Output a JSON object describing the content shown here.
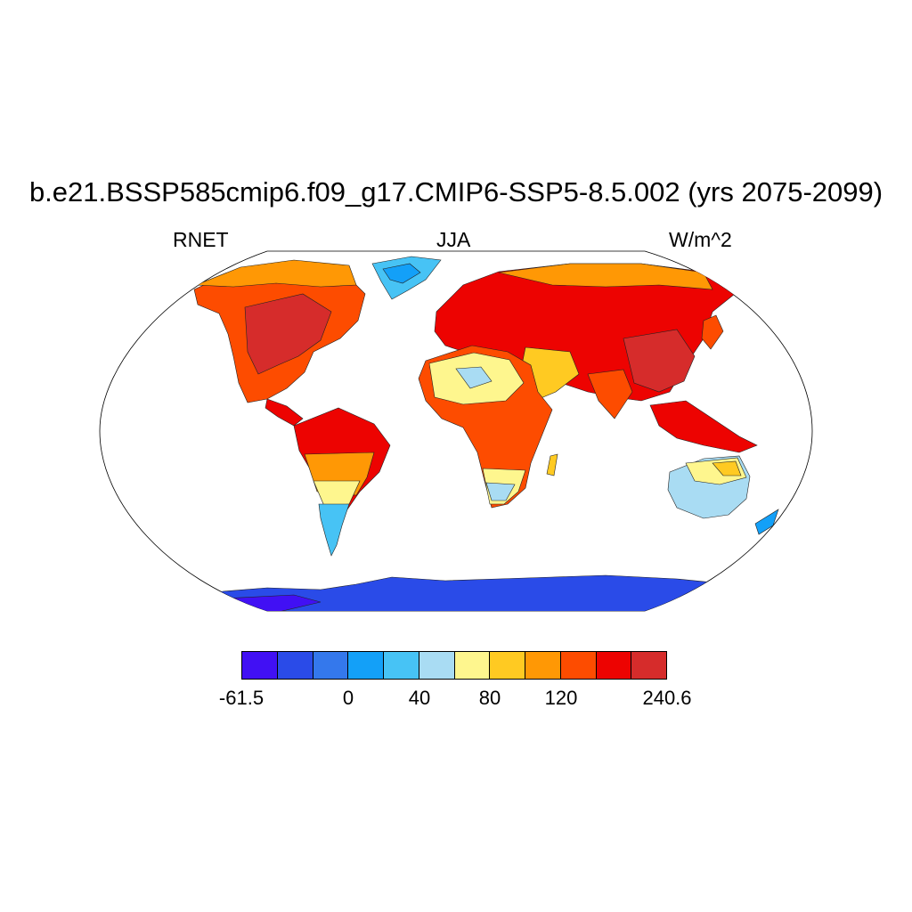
{
  "title": "b.e21.BSSP585cmip6.f09_g17.CMIP6-SSP5-8.5.002 (yrs 2075-2099)",
  "left_label": "RNET",
  "center_label": "JJA",
  "right_label": "W/m^2",
  "colorbar": {
    "colors": [
      "#4110f4",
      "#2a4be8",
      "#3478ec",
      "#13a0f8",
      "#47c3f5",
      "#a9dcf3",
      "#fef68e",
      "#ffca22",
      "#ff9805",
      "#fd4c00",
      "#ed0301",
      "#d62c2b"
    ],
    "labels": [
      "-61.5",
      "0",
      "40",
      "80",
      "120",
      "240.6"
    ]
  }
}
